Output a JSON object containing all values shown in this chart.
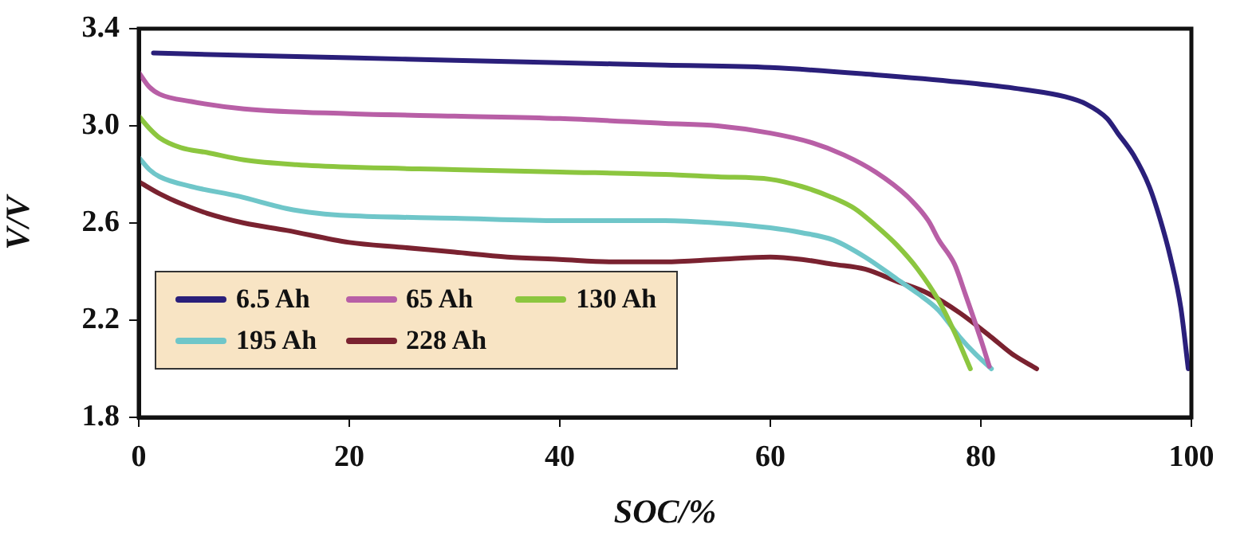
{
  "chart_data": {
    "type": "line",
    "xlabel": "SOC/%",
    "ylabel": "V/V",
    "xlim": [
      0,
      100
    ],
    "xticks": [
      0,
      20,
      40,
      60,
      80,
      100
    ],
    "ylim": [
      1.8,
      3.4
    ],
    "yticks": [
      {
        "value": 1.8,
        "label": "1.8"
      },
      {
        "value": 2.2,
        "label": "2.2"
      },
      {
        "value": 2.6,
        "label": "2.6"
      },
      {
        "value": 3,
        "label": "3.0"
      },
      {
        "value": 3.4,
        "label": "3.4"
      }
    ],
    "grid": false,
    "legend": "bottom left",
    "marker": "none",
    "line_style": "solid",
    "series": [
      {
        "name": "6.5 Ah",
        "color": "#2a1f7a",
        "x": [
          1.4,
          10,
          20,
          30,
          40,
          50,
          60,
          70,
          78,
          84,
          88,
          90,
          92,
          93,
          94.5,
          96,
          97,
          98,
          99,
          99.7
        ],
        "values": [
          3.3,
          3.29,
          3.28,
          3.27,
          3.26,
          3.25,
          3.24,
          3.21,
          3.18,
          3.15,
          3.12,
          3.09,
          3.03,
          2.97,
          2.88,
          2.75,
          2.62,
          2.46,
          2.25,
          2.0
        ]
      },
      {
        "name": "65 Ah",
        "color": "#b85fa6",
        "x": [
          0,
          1,
          2,
          5,
          10,
          20,
          30,
          40,
          50,
          55,
          60,
          64,
          67,
          70,
          73,
          75,
          76,
          77.5,
          78.5,
          80,
          80.8
        ],
        "values": [
          3.22,
          3.16,
          3.13,
          3.1,
          3.07,
          3.05,
          3.04,
          3.03,
          3.01,
          3.0,
          2.97,
          2.93,
          2.88,
          2.81,
          2.71,
          2.61,
          2.53,
          2.43,
          2.31,
          2.12,
          2.01
        ]
      },
      {
        "name": "130 Ah",
        "color": "#8cc63f",
        "x": [
          0,
          1,
          2,
          4,
          6.5,
          10,
          15,
          20,
          30,
          40,
          50,
          55,
          60,
          63,
          65.6,
          68,
          70,
          72,
          74,
          76,
          77.5,
          79
        ],
        "values": [
          3.04,
          2.99,
          2.95,
          2.91,
          2.89,
          2.86,
          2.84,
          2.83,
          2.82,
          2.81,
          2.8,
          2.79,
          2.78,
          2.75,
          2.71,
          2.66,
          2.59,
          2.51,
          2.41,
          2.28,
          2.15,
          2.0
        ]
      },
      {
        "name": "195 Ah",
        "color": "#6fc6c9",
        "x": [
          0,
          1,
          2,
          5,
          9.5,
          14,
          17,
          20,
          30,
          40,
          50,
          55,
          60,
          63,
          66,
          69,
          72,
          74,
          76,
          78,
          79.5,
          81
        ],
        "values": [
          2.87,
          2.82,
          2.79,
          2.75,
          2.71,
          2.66,
          2.64,
          2.63,
          2.62,
          2.61,
          2.61,
          2.6,
          2.58,
          2.56,
          2.53,
          2.46,
          2.37,
          2.31,
          2.24,
          2.13,
          2.06,
          2.0
        ]
      },
      {
        "name": "228 Ah",
        "color": "#7a2230",
        "x": [
          0,
          2,
          4,
          6.5,
          10,
          14,
          20,
          25,
          30,
          35,
          40,
          45,
          50,
          55,
          60,
          63,
          66,
          69,
          72,
          75,
          78,
          81,
          83,
          85.3
        ],
        "values": [
          2.77,
          2.72,
          2.68,
          2.64,
          2.6,
          2.57,
          2.52,
          2.5,
          2.48,
          2.46,
          2.45,
          2.44,
          2.44,
          2.45,
          2.46,
          2.45,
          2.43,
          2.41,
          2.36,
          2.31,
          2.23,
          2.13,
          2.06,
          2.0
        ]
      }
    ]
  }
}
